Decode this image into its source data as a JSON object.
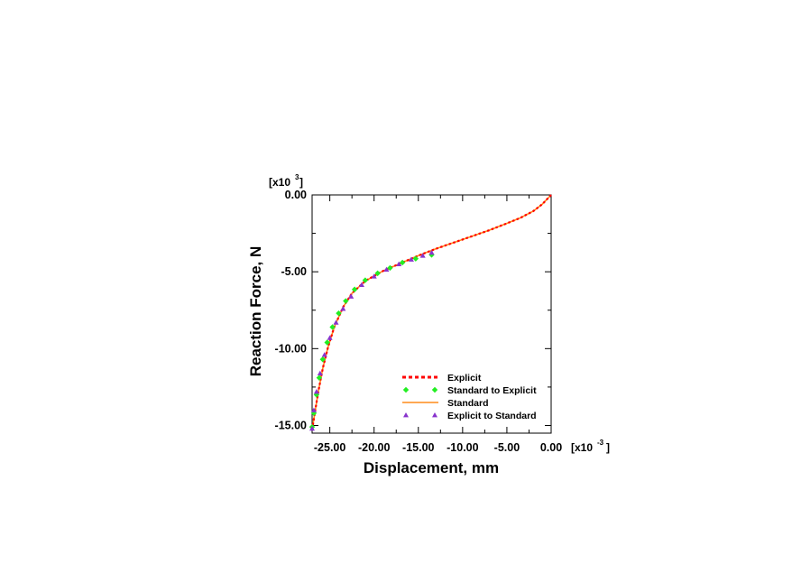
{
  "chart_data": {
    "type": "line",
    "xlabel": "Displacement, mm",
    "ylabel": "Reaction Force, N",
    "x_multiplier": {
      "base": "[x10",
      "exponent": "-3",
      "close": "]"
    },
    "y_multiplier": {
      "base": "[x10",
      "exponent": "3",
      "close": "]"
    },
    "xlim": [
      -27.0,
      0.0
    ],
    "ylim": [
      -15.5,
      0.0
    ],
    "x_ticks": [
      {
        "value": -25.0,
        "label": "-25.00"
      },
      {
        "value": -20.0,
        "label": "-20.00"
      },
      {
        "value": -15.0,
        "label": "-15.00"
      },
      {
        "value": -10.0,
        "label": "-10.00"
      },
      {
        "value": -5.0,
        "label": "-5.00"
      },
      {
        "value": 0.0,
        "label": "0.00"
      }
    ],
    "y_ticks": [
      {
        "value": 0.0,
        "label": "0.00"
      },
      {
        "value": -5.0,
        "label": "-5.00"
      },
      {
        "value": -10.0,
        "label": "-10.00"
      },
      {
        "value": -15.0,
        "label": "-15.00"
      }
    ],
    "minor_x": [
      -22.5,
      -17.5,
      -12.5,
      -7.5,
      -2.5
    ],
    "minor_y": [
      -2.5,
      -7.5,
      -12.5
    ],
    "grid": false,
    "legend_position": "bottom-right",
    "series": [
      {
        "name": "Explicit",
        "style": "dotted-line",
        "color": "#ff0000",
        "x": [
          0.0,
          -1.0,
          -2.0,
          -3.5,
          -5.0,
          -7.0,
          -9.0,
          -11.0,
          -13.0,
          -15.0,
          -17.0,
          -19.0,
          -21.0,
          -22.5,
          -23.5,
          -24.5,
          -25.2,
          -25.8,
          -26.3,
          -26.7,
          -27.0
        ],
        "y": [
          0.0,
          -0.6,
          -1.05,
          -1.5,
          -1.85,
          -2.3,
          -2.7,
          -3.1,
          -3.5,
          -3.95,
          -4.45,
          -4.95,
          -5.6,
          -6.4,
          -7.3,
          -8.6,
          -9.9,
          -11.3,
          -12.8,
          -14.2,
          -15.3
        ]
      },
      {
        "name": "Standard to Explicit",
        "style": "diamond-markers",
        "color": "#22ee22",
        "x": [
          -13.5,
          -15.3,
          -16.8,
          -18.2,
          -19.6,
          -21.0,
          -22.2,
          -23.2,
          -24.0,
          -24.7,
          -25.3,
          -25.8,
          -26.2,
          -26.5,
          -26.8,
          -27.0
        ],
        "y": [
          -3.9,
          -4.15,
          -4.4,
          -4.75,
          -5.1,
          -5.55,
          -6.15,
          -6.9,
          -7.7,
          -8.6,
          -9.6,
          -10.7,
          -11.9,
          -13.0,
          -14.2,
          -15.1
        ]
      },
      {
        "name": "Standard",
        "style": "solid-line",
        "color": "#ff8c1a",
        "x": [
          0.0,
          -1.0,
          -2.0,
          -3.5,
          -5.0,
          -7.0,
          -9.0,
          -11.0,
          -13.0,
          -15.0,
          -17.0,
          -19.0,
          -21.0,
          -22.5,
          -23.5,
          -24.5,
          -25.2,
          -25.8,
          -26.3,
          -26.7,
          -27.0
        ],
        "y": [
          0.0,
          -0.6,
          -1.05,
          -1.5,
          -1.85,
          -2.3,
          -2.7,
          -3.1,
          -3.5,
          -3.95,
          -4.45,
          -4.95,
          -5.6,
          -6.4,
          -7.3,
          -8.6,
          -9.9,
          -11.3,
          -12.8,
          -14.2,
          -15.3
        ]
      },
      {
        "name": "Explicit to Standard",
        "style": "triangle-markers",
        "color": "#8833cc",
        "x": [
          -13.5,
          -14.5,
          -15.8,
          -17.2,
          -18.6,
          -20.0,
          -21.4,
          -22.6,
          -23.5,
          -24.3,
          -25.0,
          -25.6,
          -26.1,
          -26.5,
          -26.8,
          -27.0
        ],
        "y": [
          -3.75,
          -3.95,
          -4.2,
          -4.5,
          -4.85,
          -5.3,
          -5.85,
          -6.6,
          -7.4,
          -8.3,
          -9.3,
          -10.4,
          -11.6,
          -12.8,
          -14.0,
          -15.2
        ]
      }
    ]
  }
}
